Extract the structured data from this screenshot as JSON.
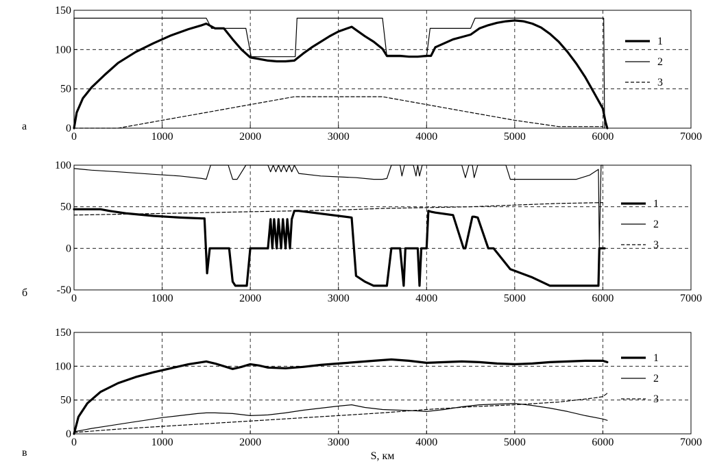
{
  "figure": {
    "xlabel": "S, км"
  },
  "chart_data": [
    {
      "type": "line",
      "panel_label": "а",
      "xlim": [
        0,
        7000
      ],
      "ylim": [
        0,
        150
      ],
      "x_ticks": [
        "0",
        "1000",
        "2000",
        "3000",
        "4000",
        "5000",
        "6000",
        "7000"
      ],
      "y_ticks": [
        "0",
        "50",
        "100",
        "150"
      ],
      "grid": true,
      "legend_position": "right",
      "series": [
        {
          "name": "1",
          "style": "thick",
          "color": "#000000",
          "x": [
            0,
            30,
            100,
            200,
            350,
            500,
            700,
            900,
            1100,
            1300,
            1450,
            1500,
            1600,
            1700,
            1800,
            1900,
            2000,
            2100,
            2200,
            2300,
            2400,
            2500,
            2600,
            2700,
            2800,
            2900,
            3000,
            3100,
            3150,
            3200,
            3300,
            3400,
            3500,
            3550,
            3600,
            3700,
            3800,
            3900,
            4000,
            4050,
            4100,
            4200,
            4300,
            4400,
            4500,
            4600,
            4700,
            4800,
            4900,
            5000,
            5100,
            5200,
            5300,
            5400,
            5500,
            5600,
            5700,
            5800,
            5900,
            6000,
            6030,
            6050
          ],
          "y": [
            0,
            20,
            38,
            52,
            68,
            83,
            97,
            108,
            118,
            126,
            131,
            133,
            127,
            127,
            113,
            100,
            90,
            88,
            86,
            85,
            85,
            86,
            95,
            103,
            110,
            117,
            123,
            127,
            129,
            125,
            117,
            110,
            101,
            92,
            92,
            92,
            91,
            91,
            92,
            92,
            103,
            108,
            113,
            116,
            119,
            127,
            131,
            134,
            136,
            137,
            136,
            133,
            128,
            120,
            110,
            97,
            82,
            65,
            45,
            25,
            8,
            0
          ]
        },
        {
          "name": "2",
          "style": "thin",
          "color": "#000000",
          "x": [
            0,
            0,
            1500,
            1560,
            1950,
            2010,
            2010,
            2510,
            2530,
            3500,
            3550,
            4000,
            4040,
            4500,
            4550,
            6010,
            6020
          ],
          "y": [
            0,
            140,
            140,
            127,
            127,
            91,
            91,
            91,
            140,
            140,
            91,
            91,
            127,
            127,
            140,
            140,
            0
          ]
        },
        {
          "name": "3",
          "style": "dashed",
          "color": "#000000",
          "x": [
            0,
            500,
            1000,
            1500,
            2000,
            2500,
            3000,
            3500,
            4000,
            4500,
            5000,
            5500,
            6000
          ],
          "y": [
            0,
            0,
            10,
            20,
            30,
            40,
            40,
            40,
            30,
            20,
            10,
            2,
            2
          ]
        }
      ]
    },
    {
      "type": "line",
      "panel_label": "б",
      "xlim": [
        0,
        7000
      ],
      "ylim": [
        -50,
        100
      ],
      "x_ticks": [
        "0",
        "1000",
        "2000",
        "3000",
        "4000",
        "5000",
        "6000",
        "7000"
      ],
      "y_ticks": [
        "-50",
        "0",
        "50",
        "100"
      ],
      "grid": true,
      "legend_position": "right",
      "series": [
        {
          "name": "1",
          "style": "thick",
          "color": "#000000",
          "x": [
            0,
            300,
            400,
            600,
            900,
            1200,
            1450,
            1480,
            1510,
            1540,
            1580,
            1620,
            1660,
            1760,
            1800,
            1830,
            1960,
            2000,
            2050,
            2200,
            2230,
            2250,
            2270,
            2300,
            2320,
            2350,
            2370,
            2400,
            2420,
            2450,
            2470,
            2500,
            2550,
            3150,
            3200,
            3300,
            3400,
            3550,
            3600,
            3700,
            3740,
            3760,
            3780,
            3900,
            3920,
            3940,
            3950,
            4000,
            4020,
            4050,
            4100,
            4300,
            4420,
            4440,
            4520,
            4540,
            4580,
            4700,
            4760,
            4950,
            5000,
            5200,
            5400,
            5500,
            5700,
            5950,
            5960,
            6000,
            6020
          ],
          "y": [
            47,
            47,
            45,
            42,
            39,
            37,
            36,
            36,
            -30,
            0,
            0,
            0,
            0,
            0,
            -40,
            -45,
            -45,
            0,
            0,
            0,
            35,
            0,
            35,
            0,
            35,
            0,
            35,
            0,
            35,
            0,
            35,
            45,
            45,
            37,
            -33,
            -40,
            -45,
            -45,
            0,
            0,
            -45,
            0,
            0,
            0,
            -45,
            0,
            0,
            0,
            45,
            44,
            43,
            40,
            0,
            0,
            38,
            38,
            37,
            0,
            0,
            -25,
            -27,
            -35,
            -45,
            -45,
            -45,
            -45,
            0,
            0,
            0
          ]
        },
        {
          "name": "2",
          "style": "thin",
          "color": "#000000",
          "x": [
            0,
            200,
            500,
            900,
            1200,
            1450,
            1500,
            1550,
            1600,
            1700,
            1750,
            1800,
            1850,
            1950,
            2000,
            2200,
            2230,
            2260,
            2290,
            2320,
            2350,
            2380,
            2410,
            2440,
            2470,
            2500,
            2550,
            2800,
            3000,
            3200,
            3400,
            3500,
            3550,
            3600,
            3650,
            3700,
            3720,
            3750,
            3780,
            3850,
            3880,
            3900,
            3920,
            3950,
            3980,
            4000,
            4200,
            4400,
            4440,
            4480,
            4520,
            4540,
            4580,
            4620,
            4650,
            4700,
            4760,
            4800,
            4900,
            4950,
            5000,
            5500,
            5700,
            5850,
            5950,
            5960,
            5980,
            6000
          ],
          "y": [
            96,
            94,
            92,
            89,
            87,
            84,
            83,
            100,
            100,
            100,
            100,
            83,
            83,
            100,
            100,
            100,
            92,
            100,
            92,
            100,
            92,
            100,
            92,
            100,
            92,
            100,
            90,
            87,
            86,
            85,
            83,
            83,
            84,
            100,
            100,
            100,
            87,
            100,
            100,
            100,
            87,
            100,
            87,
            100,
            100,
            100,
            100,
            100,
            85,
            100,
            100,
            85,
            100,
            100,
            100,
            100,
            100,
            100,
            100,
            83,
            83,
            83,
            83,
            88,
            95,
            0,
            100,
            100
          ]
        },
        {
          "name": "3",
          "style": "dashed",
          "color": "#000000",
          "x": [
            0,
            500,
            1000,
            1500,
            2000,
            2500,
            3000,
            3500,
            4000,
            4500,
            5000,
            5500,
            6000
          ],
          "y": [
            40,
            41,
            42,
            43,
            44,
            45,
            46,
            48,
            49,
            50,
            52,
            54,
            55
          ]
        }
      ]
    },
    {
      "type": "line",
      "panel_label": "в",
      "xlim": [
        0,
        7000
      ],
      "ylim": [
        0,
        150
      ],
      "x_ticks": [
        "0",
        "1000",
        "2000",
        "3000",
        "4000",
        "5000",
        "6000",
        "7000"
      ],
      "y_ticks": [
        "0",
        "50",
        "100",
        "150"
      ],
      "grid": true,
      "legend_position": "right",
      "series": [
        {
          "name": "1",
          "style": "thick",
          "color": "#000000",
          "x": [
            0,
            50,
            150,
            300,
            500,
            700,
            900,
            1100,
            1300,
            1500,
            1600,
            1700,
            1800,
            1900,
            2000,
            2100,
            2200,
            2400,
            2600,
            2800,
            3000,
            3200,
            3400,
            3600,
            3800,
            4000,
            4200,
            4400,
            4600,
            4800,
            5000,
            5200,
            5400,
            5600,
            5800,
            6000,
            6050
          ],
          "y": [
            0,
            25,
            45,
            62,
            75,
            84,
            91,
            97,
            103,
            107,
            104,
            100,
            96,
            99,
            103,
            101,
            98,
            97,
            99,
            102,
            104,
            106,
            108,
            110,
            108,
            105,
            106,
            107,
            106,
            104,
            103,
            104,
            106,
            107,
            108,
            108,
            106
          ]
        },
        {
          "name": "2",
          "style": "thin",
          "color": "#000000",
          "x": [
            0,
            200,
            400,
            600,
            800,
            1000,
            1200,
            1400,
            1500,
            1600,
            1800,
            2000,
            2200,
            2400,
            2600,
            2800,
            3000,
            3150,
            3300,
            3500,
            3700,
            3900,
            4000,
            4200,
            4400,
            4600,
            4800,
            5000,
            5200,
            5400,
            5600,
            5800,
            6000,
            6050
          ],
          "y": [
            3,
            8,
            12,
            16,
            20,
            24,
            27,
            30,
            31,
            31,
            30,
            27,
            28,
            31,
            35,
            38,
            41,
            43,
            39,
            36,
            35,
            34,
            33,
            36,
            40,
            43,
            44,
            45,
            42,
            38,
            33,
            27,
            22,
            20
          ]
        },
        {
          "name": "3",
          "style": "dashed",
          "color": "#000000",
          "x": [
            0,
            500,
            1000,
            1500,
            2000,
            2500,
            3000,
            3500,
            4000,
            4500,
            5000,
            5500,
            5900,
            6000,
            6050
          ],
          "y": [
            2,
            7,
            11,
            15,
            19,
            23,
            27,
            31,
            36,
            40,
            43,
            47,
            53,
            55,
            60
          ]
        }
      ]
    }
  ]
}
